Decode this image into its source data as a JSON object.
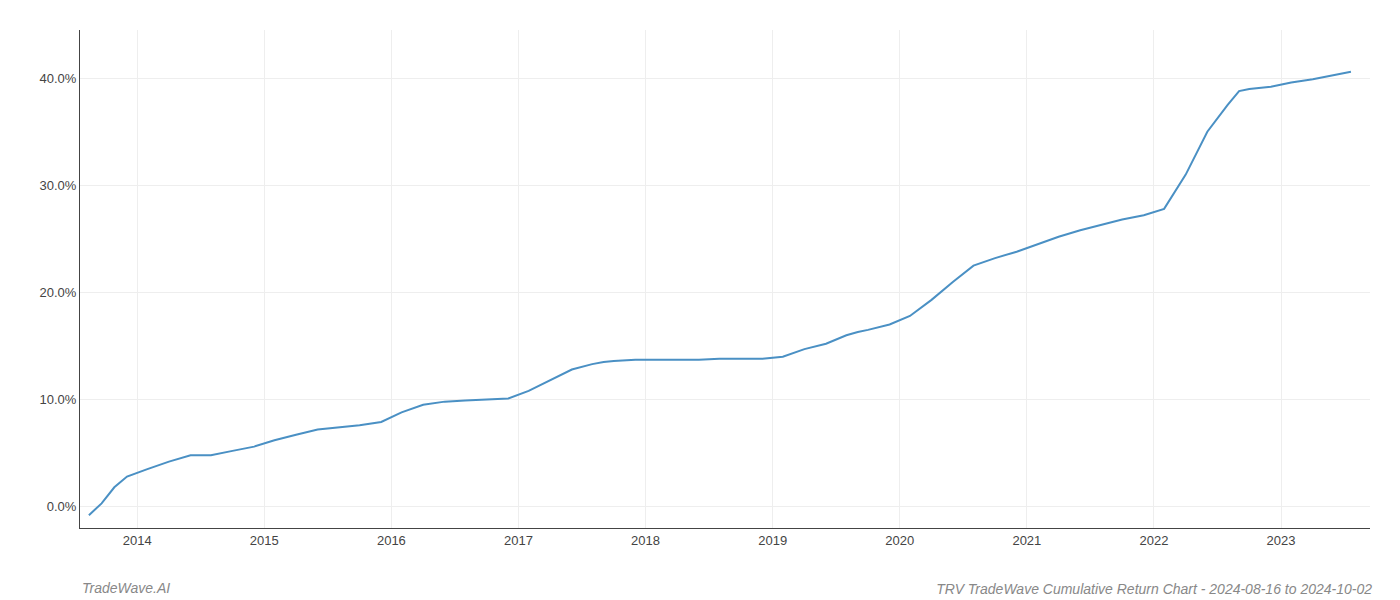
{
  "chart_data": {
    "type": "line",
    "title": "TRV TradeWave Cumulative Return Chart - 2024-08-16 to 2024-10-02",
    "annotations": [
      "TradeWave.AI"
    ],
    "color": "#4a90c4",
    "grid": true,
    "x": [
      2013.62,
      2013.72,
      2013.82,
      2013.92,
      2014.08,
      2014.25,
      2014.42,
      2014.58,
      2014.75,
      2014.92,
      2015.08,
      2015.17,
      2015.25,
      2015.42,
      2015.58,
      2015.75,
      2015.92,
      2016.08,
      2016.25,
      2016.42,
      2016.58,
      2016.75,
      2016.92,
      2017.08,
      2017.25,
      2017.42,
      2017.58,
      2017.67,
      2017.75,
      2017.92,
      2018.08,
      2018.25,
      2018.42,
      2018.58,
      2018.75,
      2018.92,
      2019.08,
      2019.25,
      2019.42,
      2019.58,
      2019.67,
      2019.75,
      2019.92,
      2020.08,
      2020.25,
      2020.42,
      2020.58,
      2020.75,
      2020.92,
      2021.08,
      2021.25,
      2021.42,
      2021.58,
      2021.75,
      2021.92,
      2022.08,
      2022.25,
      2022.42,
      2022.58,
      2022.67,
      2022.75,
      2022.92,
      2023.08,
      2023.25,
      2023.42,
      2023.55
    ],
    "values": [
      -0.008,
      0.003,
      0.018,
      0.028,
      0.035,
      0.042,
      0.048,
      0.048,
      0.052,
      0.056,
      0.062,
      0.065,
      0.067,
      0.072,
      0.074,
      0.076,
      0.079,
      0.088,
      0.095,
      0.098,
      0.099,
      0.1,
      0.101,
      0.108,
      0.118,
      0.128,
      0.133,
      0.135,
      0.136,
      0.137,
      0.137,
      0.137,
      0.137,
      0.138,
      0.138,
      0.138,
      0.14,
      0.147,
      0.152,
      0.16,
      0.163,
      0.165,
      0.17,
      0.178,
      0.193,
      0.21,
      0.225,
      0.232,
      0.238,
      0.245,
      0.252,
      0.258,
      0.263,
      0.268,
      0.272,
      0.278,
      0.31,
      0.35,
      0.375,
      0.388,
      0.39,
      0.392,
      0.396,
      0.399,
      0.403,
      0.406
    ],
    "xlim": [
      2013.55,
      2023.7
    ],
    "xticks": [
      2014,
      2015,
      2016,
      2017,
      2018,
      2019,
      2020,
      2021,
      2022,
      2023
    ],
    "ylim": [
      -0.02,
      0.445
    ],
    "yticks": [
      {
        "value": 0.0,
        "label": "0.0%"
      },
      {
        "value": 0.1,
        "label": "10.0%"
      },
      {
        "value": 0.2,
        "label": "20.0%"
      },
      {
        "value": 0.3,
        "label": "30.0%"
      },
      {
        "value": 0.4,
        "label": "40.0%"
      }
    ]
  }
}
